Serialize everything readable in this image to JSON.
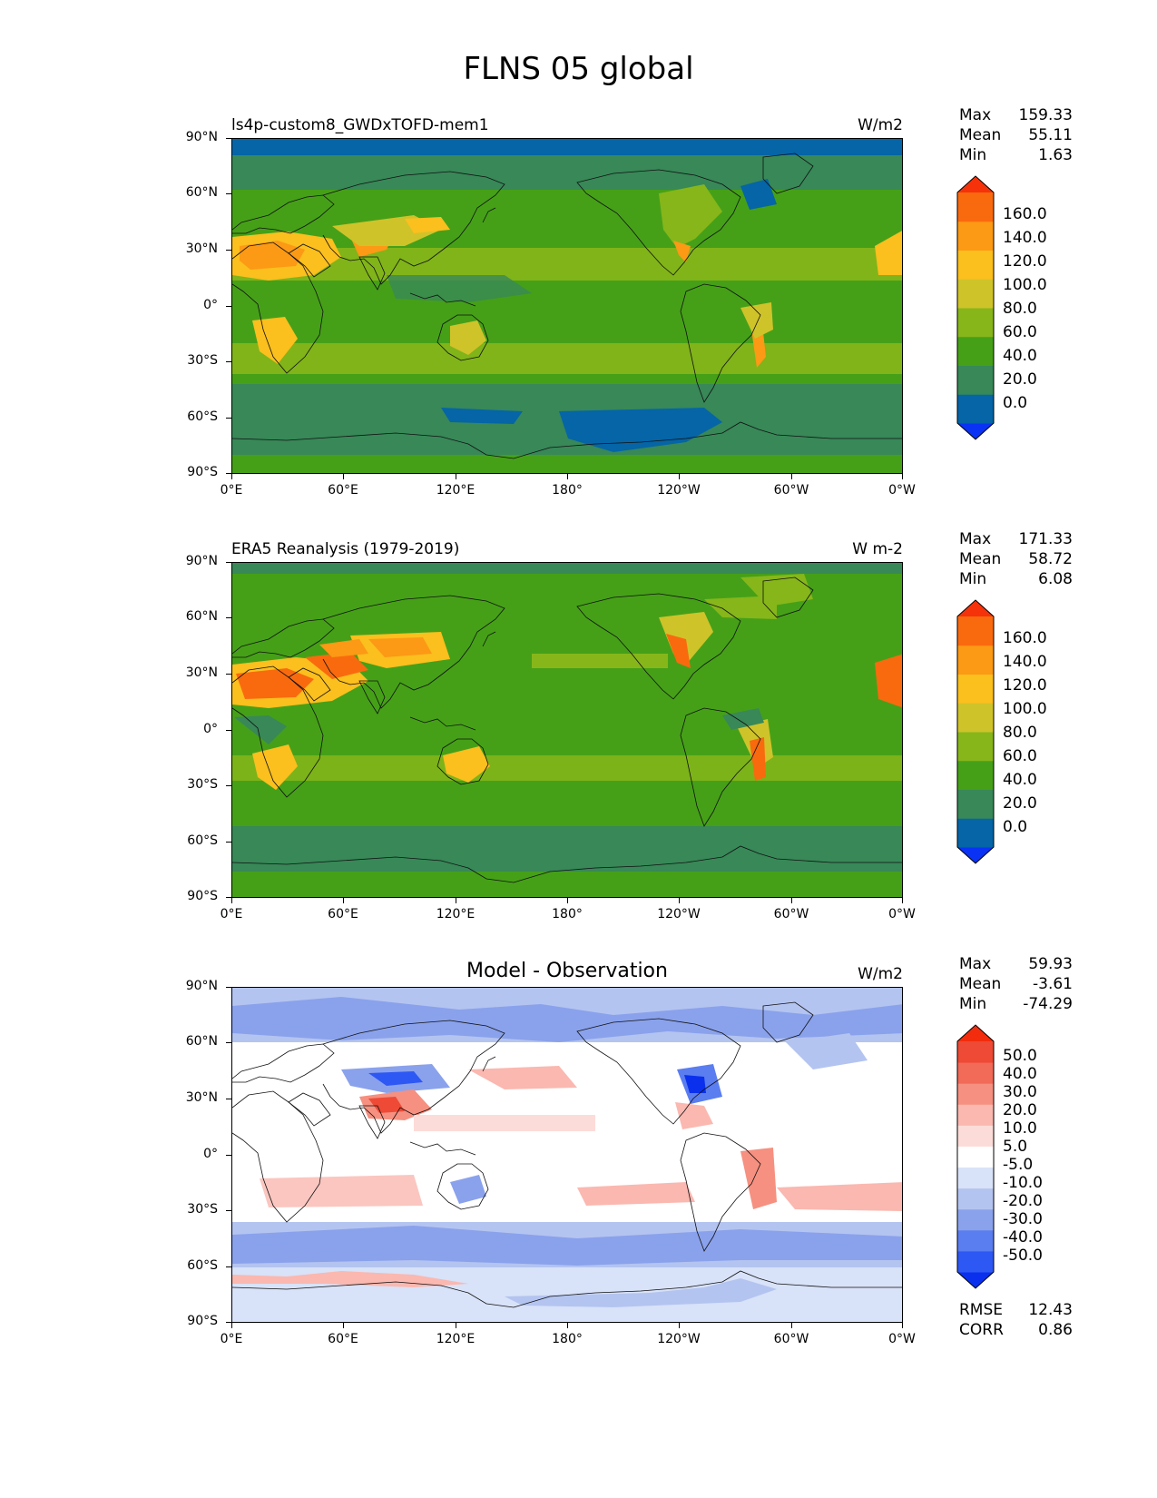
{
  "title": "FLNS 05 global",
  "axes": {
    "y_ticks": [
      "90°N",
      "60°N",
      "30°N",
      "0°",
      "30°S",
      "60°S",
      "90°S"
    ],
    "x_ticks": [
      "0°E",
      "60°E",
      "120°E",
      "180°",
      "120°W",
      "60°W",
      "0°W"
    ]
  },
  "panels": [
    {
      "title_left": "ls4p-custom8_GWDxTOFD-mem1",
      "title_center": "",
      "units": "W/m2",
      "stats": [
        {
          "label": "Max",
          "value": "159.33"
        },
        {
          "label": "Mean",
          "value": "55.11"
        },
        {
          "label": "Min",
          "value": "1.63"
        }
      ],
      "colorbar": {
        "labels": [
          "160.0",
          "140.0",
          "120.0",
          "100.0",
          "80.0",
          "60.0",
          "40.0",
          "20.0",
          "0.0"
        ],
        "colors": [
          "#0a32f5",
          "#0565a6",
          "#388858",
          "#45a018",
          "#86b61a",
          "#cfc32a",
          "#fbbf1e",
          "#fc9915",
          "#f96a0e",
          "#f5320a"
        ]
      },
      "map": "model"
    },
    {
      "title_left": "ERA5 Reanalysis (1979-2019)",
      "title_center": "",
      "units": "W m-2",
      "stats": [
        {
          "label": "Max",
          "value": "171.33"
        },
        {
          "label": "Mean",
          "value": "58.72"
        },
        {
          "label": "Min",
          "value": "6.08"
        }
      ],
      "colorbar": {
        "labels": [
          "160.0",
          "140.0",
          "120.0",
          "100.0",
          "80.0",
          "60.0",
          "40.0",
          "20.0",
          "0.0"
        ],
        "colors": [
          "#0a32f5",
          "#0565a6",
          "#388858",
          "#45a018",
          "#86b61a",
          "#cfc32a",
          "#fbbf1e",
          "#fc9915",
          "#f96a0e",
          "#f5320a"
        ]
      },
      "map": "obs"
    },
    {
      "title_left": "",
      "title_center": "Model - Observation",
      "units": "W/m2",
      "stats": [
        {
          "label": "Max",
          "value": "59.93"
        },
        {
          "label": "Mean",
          "value": "-3.61"
        },
        {
          "label": "Min",
          "value": "-74.29"
        }
      ],
      "colorbar": {
        "labels": [
          "50.0",
          "40.0",
          "30.0",
          "20.0",
          "10.0",
          "5.0",
          "-5.0",
          "-10.0",
          "-20.0",
          "-30.0",
          "-40.0",
          "-50.0"
        ],
        "colors": [
          "#0a30ee",
          "#2e58f4",
          "#5a7df0",
          "#8aa2ec",
          "#b4c4f0",
          "#d8e2f8",
          "#ffffff",
          "#fcdcd8",
          "#fab8b0",
          "#f69080",
          "#f26a58",
          "#ee4a36",
          "#f22c0c"
        ]
      },
      "extra_stats": [
        {
          "label": "RMSE",
          "value": "12.43"
        },
        {
          "label": "CORR",
          "value": "0.86"
        }
      ],
      "map": "diff"
    }
  ]
}
